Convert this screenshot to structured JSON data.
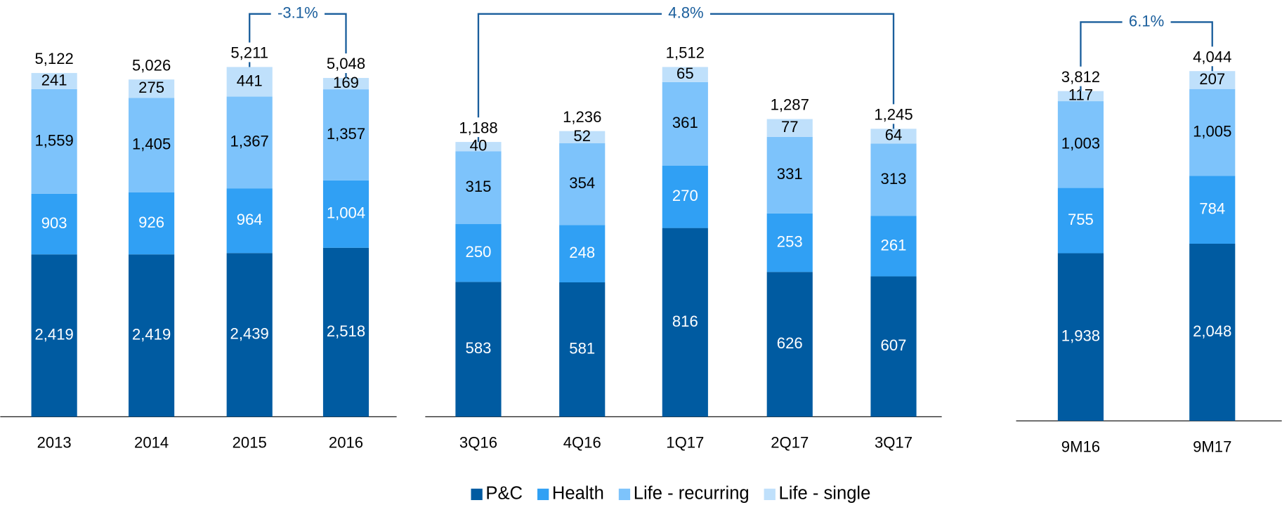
{
  "legend": [
    {
      "name": "P&C",
      "color": "#005ba1"
    },
    {
      "name": "Health",
      "color": "#30a0f4"
    },
    {
      "name": "Life - recurring",
      "color": "#7dc3fb"
    },
    {
      "name": "Life - single",
      "color": "#bfe0fb"
    }
  ],
  "chart_data": [
    {
      "type": "bar",
      "stacked": true,
      "categories": [
        "2013",
        "2014",
        "2015",
        "2016"
      ],
      "series": [
        {
          "values": [
            2419,
            2419,
            2439,
            2518
          ],
          "value_labels": [
            "2,419",
            "2,419",
            "2,439",
            "2,518"
          ]
        },
        {
          "values": [
            903,
            926,
            964,
            1004
          ],
          "value_labels": [
            "903",
            "926",
            "964",
            "1,004"
          ]
        },
        {
          "values": [
            1559,
            1405,
            1367,
            1357
          ],
          "value_labels": [
            "1,559",
            "1,405",
            "1,367",
            "1,357"
          ]
        },
        {
          "values": [
            241,
            275,
            441,
            169
          ],
          "value_labels": [
            "241",
            "275",
            "441",
            "169"
          ]
        }
      ],
      "totals": [
        5122,
        5026,
        5211,
        5048
      ],
      "total_labels": [
        "5,122",
        "5,026",
        "5,211",
        "5,048"
      ],
      "annotation": {
        "text": "-3.1%",
        "from": "2015",
        "to": "2016"
      }
    },
    {
      "type": "bar",
      "stacked": true,
      "categories": [
        "3Q16",
        "4Q16",
        "1Q17",
        "2Q17",
        "3Q17"
      ],
      "series": [
        {
          "values": [
            583,
            581,
            816,
            626,
            607
          ],
          "value_labels": [
            "583",
            "581",
            "816",
            "626",
            "607"
          ]
        },
        {
          "values": [
            250,
            248,
            270,
            253,
            261
          ],
          "value_labels": [
            "250",
            "248",
            "270",
            "253",
            "261"
          ]
        },
        {
          "values": [
            315,
            354,
            361,
            331,
            313
          ],
          "value_labels": [
            "315",
            "354",
            "361",
            "331",
            "313"
          ]
        },
        {
          "values": [
            40,
            52,
            65,
            77,
            64
          ],
          "value_labels": [
            "40",
            "52",
            "65",
            "77",
            "64"
          ]
        }
      ],
      "totals": [
        1188,
        1236,
        1512,
        1287,
        1245
      ],
      "total_labels": [
        "1,188",
        "1,236",
        "1,512",
        "1,287",
        "1,245"
      ],
      "annotation": {
        "text": "4.8%",
        "from": "3Q16",
        "to": "3Q17"
      }
    },
    {
      "type": "bar",
      "stacked": true,
      "categories": [
        "9M16",
        "9M17"
      ],
      "series": [
        {
          "values": [
            1938,
            2048
          ],
          "value_labels": [
            "1,938",
            "2,048"
          ]
        },
        {
          "values": [
            755,
            784
          ],
          "value_labels": [
            "755",
            "784"
          ]
        },
        {
          "values": [
            1003,
            1005
          ],
          "value_labels": [
            "1,003",
            "1,005"
          ]
        },
        {
          "values": [
            117,
            207
          ],
          "value_labels": [
            "117",
            "207"
          ]
        }
      ],
      "totals": [
        3812,
        4044
      ],
      "total_labels": [
        "3,812",
        "4,044"
      ],
      "annotation": {
        "text": "6.1%",
        "from": "9M16",
        "to": "9M17"
      }
    }
  ]
}
